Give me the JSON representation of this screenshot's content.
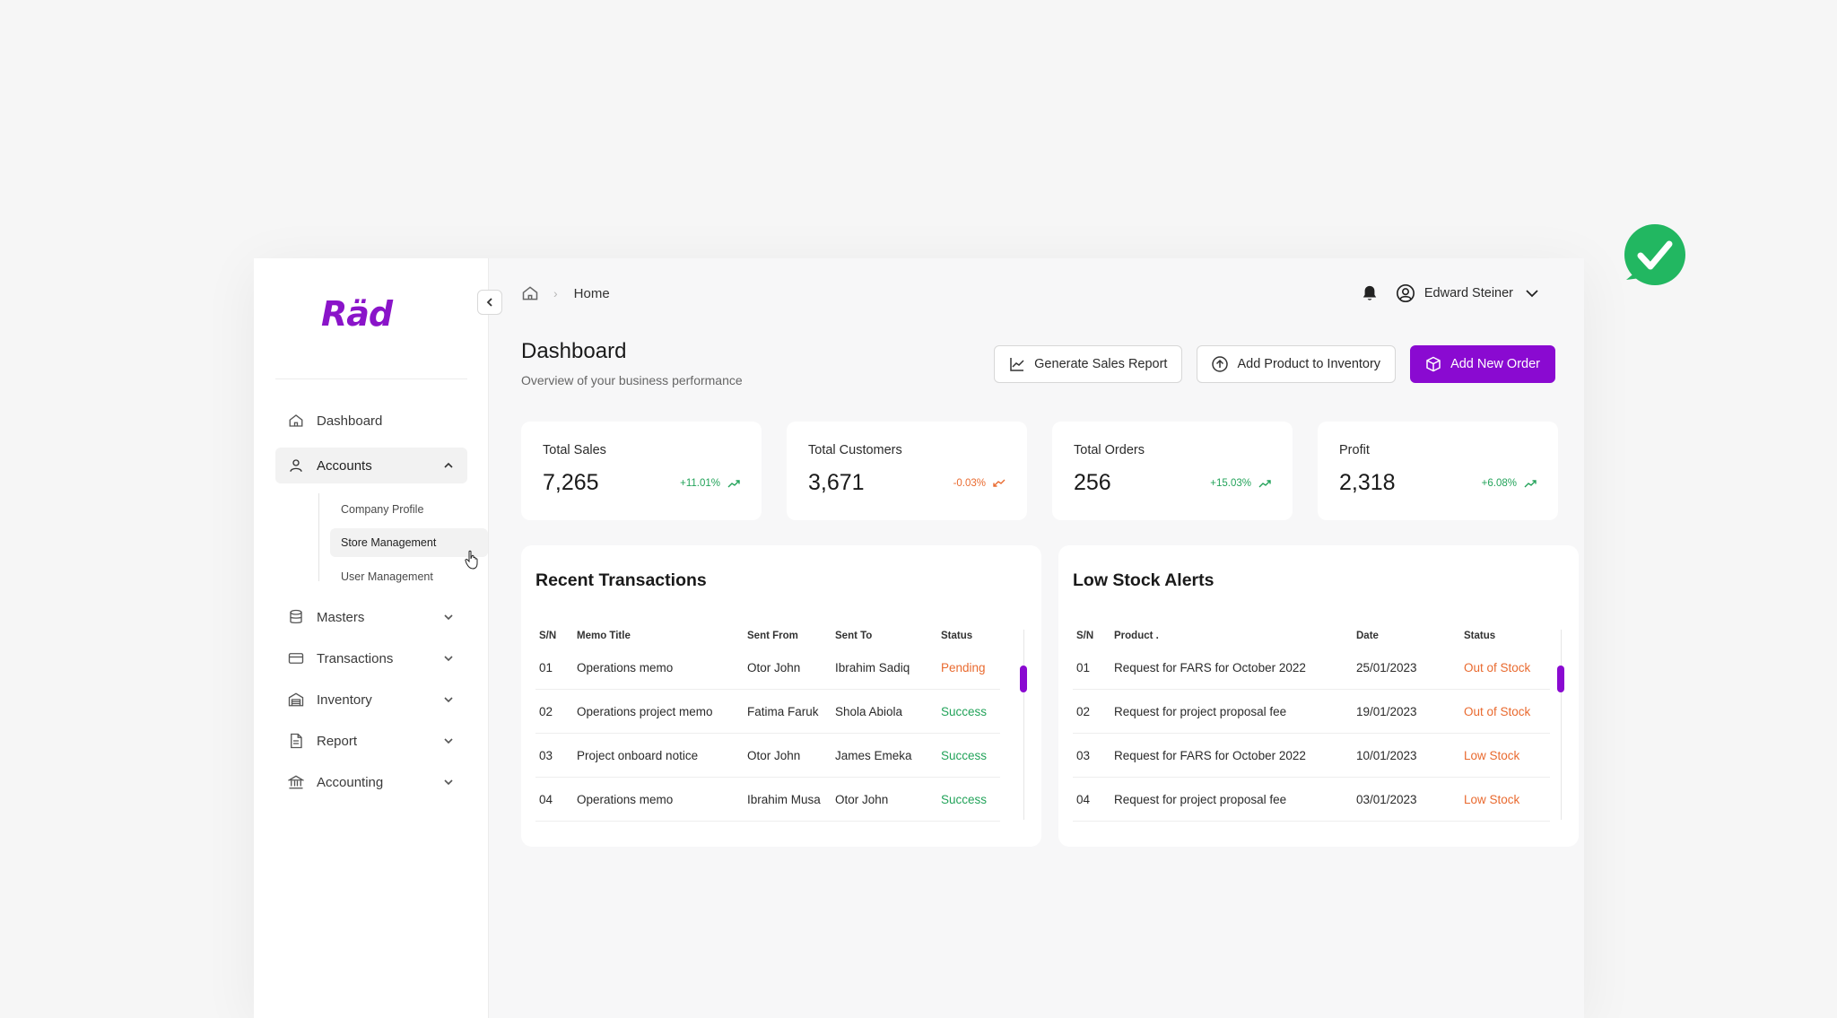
{
  "app": {
    "logo_text": "Räd"
  },
  "colors": {
    "brand": "#8a0ad1",
    "success": "#23a35a",
    "warning": "#e96a2f"
  },
  "sidebar": {
    "items": [
      {
        "label": "Dashboard",
        "icon": "home-icon"
      },
      {
        "label": "Accounts",
        "icon": "user-icon",
        "expanded": true,
        "children": [
          {
            "label": "Company Profile"
          },
          {
            "label": "Store Management",
            "active": true
          },
          {
            "label": "User Management"
          }
        ]
      },
      {
        "label": "Masters",
        "icon": "database-icon"
      },
      {
        "label": "Transactions",
        "icon": "credit-card-icon"
      },
      {
        "label": "Inventory",
        "icon": "warehouse-icon"
      },
      {
        "label": "Report",
        "icon": "document-icon"
      },
      {
        "label": "Accounting",
        "icon": "bank-icon"
      }
    ]
  },
  "header": {
    "breadcrumb": "Home",
    "user_name": "Edward Steiner"
  },
  "page": {
    "title": "Dashboard",
    "subtitle": "Overview of your business performance"
  },
  "actions": {
    "generate_report": "Generate Sales Report",
    "add_product": "Add Product to Inventory",
    "add_order": "Add New Order"
  },
  "stats": [
    {
      "label": "Total Sales",
      "value": "7,265",
      "change": "+11.01%",
      "trend": "up"
    },
    {
      "label": "Total Customers",
      "value": "3,671",
      "change": "-0.03%",
      "trend": "down"
    },
    {
      "label": "Total Orders",
      "value": "256",
      "change": "+15.03%",
      "trend": "up"
    },
    {
      "label": "Profit",
      "value": "2,318",
      "change": "+6.08%",
      "trend": "up"
    }
  ],
  "transactions": {
    "title": "Recent Transactions",
    "columns": [
      "S/N",
      "Memo Title",
      "Sent From",
      "Sent To",
      "Status"
    ],
    "rows": [
      [
        "01",
        "Operations memo",
        "Otor John",
        "Ibrahim Sadiq",
        "Pending"
      ],
      [
        "02",
        "Operations project memo",
        "Fatima Faruk",
        "Shola Abiola",
        "Success"
      ],
      [
        "03",
        "Project onboard notice",
        "Otor John",
        "James Emeka",
        "Success"
      ],
      [
        "04",
        "Operations memo",
        "Ibrahim Musa",
        "Otor John",
        "Success"
      ]
    ]
  },
  "low_stock": {
    "title": "Low Stock Alerts",
    "columns": [
      "S/N",
      "Product .",
      "Date",
      "Status"
    ],
    "rows": [
      [
        "01",
        "Request for FARS for October 2022",
        "25/01/2023",
        "Out of Stock"
      ],
      [
        "02",
        "Request for project proposal fee",
        "19/01/2023",
        "Out of Stock"
      ],
      [
        "03",
        "Request for FARS for October 2022",
        "10/01/2023",
        "Low Stock"
      ],
      [
        "04",
        "Request for project proposal fee",
        "03/01/2023",
        "Low Stock"
      ]
    ]
  }
}
